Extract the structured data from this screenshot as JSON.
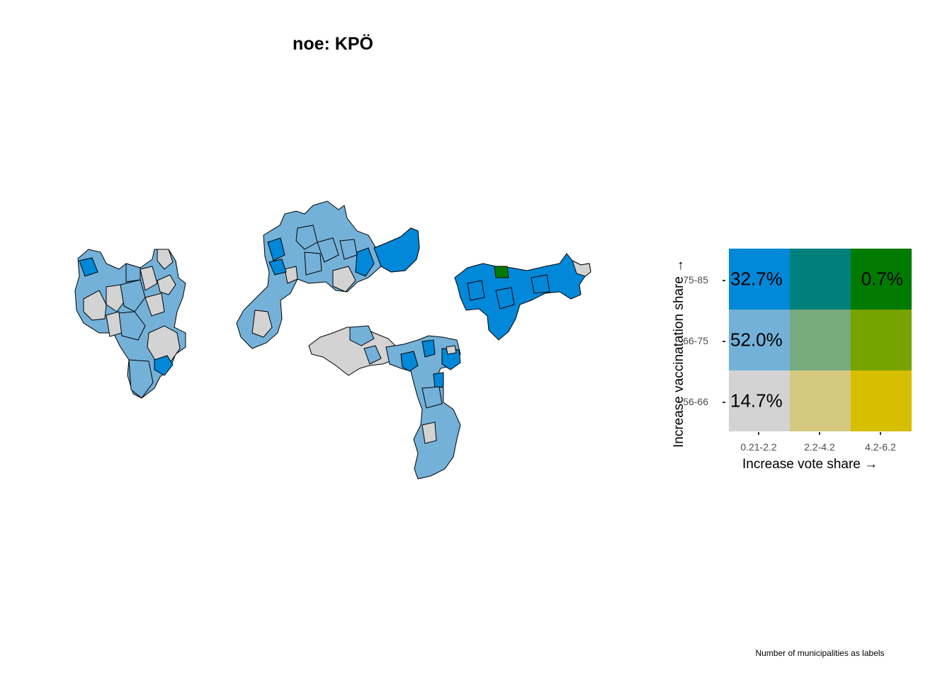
{
  "title": "noe: KPÖ",
  "caption": "Number of municipalities as labels",
  "legend": {
    "xlabel": "Increase vote share →",
    "ylabel": "Increase vaccinatation share →",
    "x_ticks": [
      "0.21-2.2",
      "2.2-4.2",
      "4.2-6.2"
    ],
    "y_ticks": [
      "75-85",
      "66-75",
      "56-66"
    ],
    "cells": [
      {
        "row": 0,
        "col": 0,
        "color": "#0288D9",
        "label": "32.7%"
      },
      {
        "row": 0,
        "col": 1,
        "color": "#00807B",
        "label": ""
      },
      {
        "row": 0,
        "col": 2,
        "color": "#007A00",
        "label": "0.7%"
      },
      {
        "row": 1,
        "col": 0,
        "color": "#74B1D8",
        "label": "52.0%"
      },
      {
        "row": 1,
        "col": 1,
        "color": "#77AA7D",
        "label": ""
      },
      {
        "row": 1,
        "col": 2,
        "color": "#77A300",
        "label": ""
      },
      {
        "row": 2,
        "col": 0,
        "color": "#D3D3D3",
        "label": "14.7%"
      },
      {
        "row": 2,
        "col": 1,
        "color": "#D4C97E",
        "label": ""
      },
      {
        "row": 2,
        "col": 2,
        "color": "#D7BF00",
        "label": ""
      }
    ]
  },
  "map_colors": {
    "low_low": "#D3D3D3",
    "low_mid": "#74B1D8",
    "low_high": "#0288D9",
    "high_high": "#007A00"
  }
}
